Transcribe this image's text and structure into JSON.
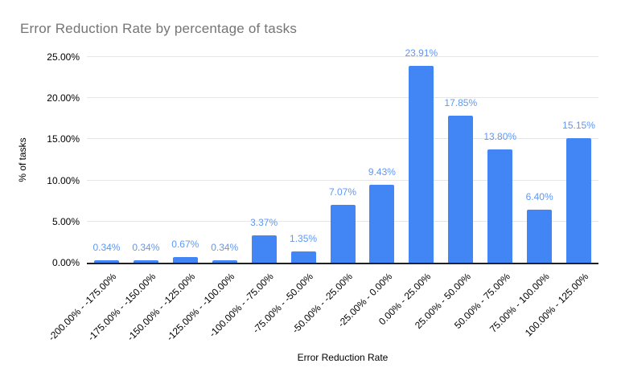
{
  "chart_data": {
    "type": "bar",
    "title": "Error Reduction Rate by percentage of tasks",
    "xlabel": "Error Reduction Rate",
    "ylabel": "% of tasks",
    "categories": [
      "-200.00% - -175.00%",
      "-175.00% - -150.00%",
      "-150.00% - -125.00%",
      "-125.00% - -100.00%",
      "-100.00% - -75.00%",
      "-75.00% - -50.00%",
      "-50.00% - -25.00%",
      "-25.00% - 0.00%",
      "0.00% - 25.00%",
      "25.00% - 50.00%",
      "50.00% - 75.00%",
      "75.00% - 100.00%",
      "100.00% - 125.00%"
    ],
    "values": [
      0.34,
      0.34,
      0.67,
      0.34,
      3.37,
      1.35,
      7.07,
      9.43,
      23.91,
      17.85,
      13.8,
      6.4,
      15.15
    ],
    "value_labels": [
      "0.34%",
      "0.34%",
      "0.67%",
      "0.34%",
      "3.37%",
      "1.35%",
      "7.07%",
      "9.43%",
      "23.91%",
      "17.85%",
      "13.80%",
      "6.40%",
      "15.15%"
    ],
    "y_tick_values": [
      0,
      5,
      10,
      15,
      20,
      25
    ],
    "y_tick_labels": [
      "0.00%",
      "5.00%",
      "10.00%",
      "15.00%",
      "20.00%",
      "25.00%"
    ],
    "ylim": [
      0,
      25
    ],
    "grid": true,
    "legend": "none",
    "colors": {
      "bar": "#4285f4",
      "data_label": "#5e97f6",
      "title": "#757575",
      "gridline": "#e6e6e6",
      "axis_line": "#212121",
      "tick_text": "#000000"
    }
  }
}
